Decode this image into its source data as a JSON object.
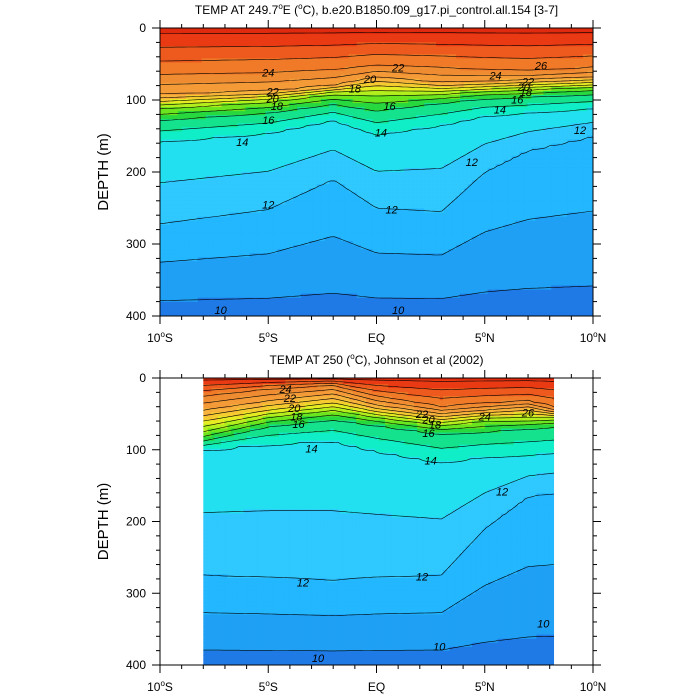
{
  "chart_data": [
    {
      "type": "contour",
      "title": "TEMP AT 249.7°E (°C), b.e20.B1850.f09_g17.pi_control.all.154 [3-7]",
      "title_pre": "TEMP AT 249.7",
      "title_sup": "o",
      "title_post": "E (",
      "title_sup2": "o",
      "title_end": "C), b.e20.B1850.f09_g17.pi_control.all.154 [3-7]",
      "xlabel": "",
      "ylabel": "DEPTH (m)",
      "xlim": [
        -10,
        10
      ],
      "ylim": [
        400,
        0
      ],
      "x_ticks": [
        {
          "value": -10,
          "num": "10",
          "deg": "o",
          "hem": "S"
        },
        {
          "value": -5,
          "num": "5",
          "deg": "o",
          "hem": "S"
        },
        {
          "value": 0,
          "num": "EQ",
          "deg": "",
          "hem": ""
        },
        {
          "value": 5,
          "num": "5",
          "deg": "o",
          "hem": "N"
        },
        {
          "value": 10,
          "num": "10",
          "deg": "o",
          "hem": "N"
        }
      ],
      "y_ticks": [
        "0",
        "100",
        "200",
        "300",
        "400"
      ],
      "contour_levels": [
        9,
        10,
        11,
        12,
        13,
        14,
        15,
        16,
        17,
        18,
        19,
        20,
        21,
        22,
        23,
        24,
        25,
        26,
        27
      ],
      "data_lon_range": [
        -10,
        10
      ],
      "isotherm_depths": [
        {
          "level": 12,
          "lat": [
            -10,
            -5,
            -2,
            0,
            3,
            5,
            7,
            10
          ],
          "depth": [
            272,
            252,
            210,
            250,
            255,
            200,
            170,
            150
          ]
        },
        {
          "level": 14,
          "lat": [
            -10,
            -5,
            -2,
            0,
            3,
            5,
            7,
            10
          ],
          "depth": [
            158,
            146,
            128,
            148,
            135,
            122,
            118,
            112
          ]
        },
        {
          "level": 16,
          "lat": [
            -10,
            -5,
            -2,
            0,
            3,
            5,
            7,
            10
          ],
          "depth": [
            128,
            118,
            106,
            115,
            104,
            98,
            96,
            92
          ]
        },
        {
          "level": 18,
          "lat": [
            -10,
            -5,
            -2,
            0,
            3,
            5,
            7,
            10
          ],
          "depth": [
            112,
            103,
            92,
            94,
            92,
            88,
            86,
            82
          ]
        },
        {
          "level": 20,
          "lat": [
            -10,
            -5,
            -2,
            0,
            3,
            5,
            7,
            10
          ],
          "depth": [
            102,
            95,
            86,
            80,
            84,
            82,
            79,
            76
          ]
        },
        {
          "level": 22,
          "lat": [
            -10,
            -5,
            -2,
            0,
            3,
            5,
            7,
            10
          ],
          "depth": [
            92,
            88,
            80,
            68,
            76,
            74,
            72,
            68
          ]
        },
        {
          "level": 24,
          "lat": [
            -10,
            -5,
            -2,
            0,
            3,
            5,
            7,
            10
          ],
          "depth": [
            65,
            62,
            58,
            52,
            55,
            58,
            60,
            55
          ]
        }
      ],
      "contour_labels": [
        {
          "value": "24",
          "lat": -5.0,
          "depth": 62
        },
        {
          "value": "22",
          "lat": -4.8,
          "depth": 88
        },
        {
          "value": "20",
          "lat": -4.8,
          "depth": 98
        },
        {
          "value": "18",
          "lat": -4.6,
          "depth": 108
        },
        {
          "value": "16",
          "lat": -5.0,
          "depth": 128
        },
        {
          "value": "14",
          "lat": -6.2,
          "depth": 158
        },
        {
          "value": "12",
          "lat": -5.0,
          "depth": 245
        },
        {
          "value": "10",
          "lat": -7.2,
          "depth": 392
        },
        {
          "value": "22",
          "lat": 1.0,
          "depth": 55
        },
        {
          "value": "20",
          "lat": -0.3,
          "depth": 71
        },
        {
          "value": "18",
          "lat": -1.0,
          "depth": 84
        },
        {
          "value": "16",
          "lat": 0.6,
          "depth": 108
        },
        {
          "value": "14",
          "lat": 0.2,
          "depth": 145
        },
        {
          "value": "12",
          "lat": 0.7,
          "depth": 252
        },
        {
          "value": "10",
          "lat": 1.0,
          "depth": 392
        },
        {
          "value": "24",
          "lat": 5.5,
          "depth": 66
        },
        {
          "value": "22",
          "lat": 7.0,
          "depth": 74
        },
        {
          "value": "20",
          "lat": 6.8,
          "depth": 82
        },
        {
          "value": "18",
          "lat": 6.9,
          "depth": 89
        },
        {
          "value": "16",
          "lat": 6.5,
          "depth": 99
        },
        {
          "value": "14",
          "lat": 5.7,
          "depth": 113
        },
        {
          "value": "12",
          "lat": 4.4,
          "depth": 186
        },
        {
          "value": "12",
          "lat": 9.4,
          "depth": 142
        },
        {
          "value": "26",
          "lat": 7.6,
          "depth": 52
        }
      ]
    },
    {
      "type": "contour",
      "title": "TEMP AT 250 (°C), Johnson et al (2002)",
      "title_pre": "TEMP AT 250 (",
      "title_sup": "o",
      "title_post": "C), Johnson et al (2002)",
      "xlabel": "",
      "ylabel": "DEPTH (m)",
      "xlim": [
        -10,
        10
      ],
      "ylim": [
        400,
        0
      ],
      "x_ticks": [
        {
          "value": -10,
          "num": "10",
          "deg": "o",
          "hem": "S"
        },
        {
          "value": -5,
          "num": "5",
          "deg": "o",
          "hem": "S"
        },
        {
          "value": 0,
          "num": "EQ",
          "deg": "",
          "hem": ""
        },
        {
          "value": 5,
          "num": "5",
          "deg": "o",
          "hem": "N"
        },
        {
          "value": 10,
          "num": "10",
          "deg": "o",
          "hem": "N"
        }
      ],
      "y_ticks": [
        "0",
        "100",
        "200",
        "300",
        "400"
      ],
      "contour_levels": [
        9,
        10,
        11,
        12,
        13,
        14,
        15,
        16,
        17,
        18,
        19,
        20,
        21,
        22,
        23,
        24,
        25,
        26,
        27
      ],
      "data_lon_range": [
        -8,
        8.2
      ],
      "isotherm_depths": [
        {
          "level": 12,
          "lat": [
            -8,
            -5,
            -2,
            0,
            3,
            5,
            7,
            8.2
          ],
          "depth": [
            275,
            278,
            282,
            278,
            275,
            210,
            165,
            160
          ]
        },
        {
          "level": 14,
          "lat": [
            -8,
            -5,
            -2,
            0,
            3,
            5,
            7,
            8.2
          ],
          "depth": [
            100,
            92,
            88,
            102,
            118,
            110,
            108,
            105
          ]
        },
        {
          "level": 16,
          "lat": [
            -8,
            -5,
            -2,
            0,
            3,
            5,
            7,
            8.2
          ],
          "depth": [
            88,
            68,
            58,
            66,
            78,
            75,
            70,
            68
          ]
        },
        {
          "level": 18,
          "lat": [
            -8,
            -5,
            -2,
            0,
            3,
            5,
            7,
            8.2
          ],
          "depth": [
            75,
            55,
            45,
            55,
            66,
            60,
            60,
            58
          ]
        },
        {
          "level": 20,
          "lat": [
            -8,
            -5,
            -2,
            0,
            3,
            5,
            7,
            8.2
          ],
          "depth": [
            60,
            45,
            35,
            47,
            58,
            52,
            50,
            52
          ]
        },
        {
          "level": 22,
          "lat": [
            -8,
            -5,
            -2,
            0,
            3,
            5,
            7,
            8.2
          ],
          "depth": [
            45,
            32,
            22,
            38,
            50,
            45,
            40,
            48
          ]
        },
        {
          "level": 24,
          "lat": [
            -8,
            -5,
            -2,
            0,
            3,
            5,
            7,
            8.2
          ],
          "depth": [
            25,
            15,
            10,
            25,
            40,
            35,
            32,
            40
          ]
        }
      ],
      "contour_labels": [
        {
          "value": "24",
          "lat": -4.2,
          "depth": 15
        },
        {
          "value": "22",
          "lat": -4.0,
          "depth": 28
        },
        {
          "value": "20",
          "lat": -3.8,
          "depth": 42
        },
        {
          "value": "18",
          "lat": -3.7,
          "depth": 54
        },
        {
          "value": "16",
          "lat": -3.6,
          "depth": 64
        },
        {
          "value": "14",
          "lat": -3.0,
          "depth": 98
        },
        {
          "value": "12",
          "lat": -3.4,
          "depth": 285
        },
        {
          "value": "10",
          "lat": -2.7,
          "depth": 390
        },
        {
          "value": "22",
          "lat": 2.1,
          "depth": 50
        },
        {
          "value": "20",
          "lat": 2.4,
          "depth": 58
        },
        {
          "value": "18",
          "lat": 2.7,
          "depth": 65
        },
        {
          "value": "16",
          "lat": 2.4,
          "depth": 77
        },
        {
          "value": "14",
          "lat": 2.5,
          "depth": 115
        },
        {
          "value": "12",
          "lat": 2.1,
          "depth": 277
        },
        {
          "value": "10",
          "lat": 2.9,
          "depth": 374
        },
        {
          "value": "24",
          "lat": 5.0,
          "depth": 54
        },
        {
          "value": "26",
          "lat": 7.0,
          "depth": 48
        },
        {
          "value": "12",
          "lat": 5.8,
          "depth": 158
        },
        {
          "value": "10",
          "lat": 7.7,
          "depth": 342
        }
      ]
    }
  ],
  "colors": {
    "frame": "#000000",
    "contour_line": "#000000",
    "palette": [
      "#1c4fd6",
      "#1f7ae6",
      "#1fa0f5",
      "#23b7ff",
      "#2fc8ff",
      "#22e0f0",
      "#10eec8",
      "#14e28c",
      "#27d83e",
      "#6ae51e",
      "#b2ef1c",
      "#e6ec22",
      "#f5cc30",
      "#f7b23c",
      "#f49b38",
      "#ef8c32",
      "#f07a28",
      "#ee5a1e",
      "#ea3a14",
      "#e02a0e"
    ]
  }
}
